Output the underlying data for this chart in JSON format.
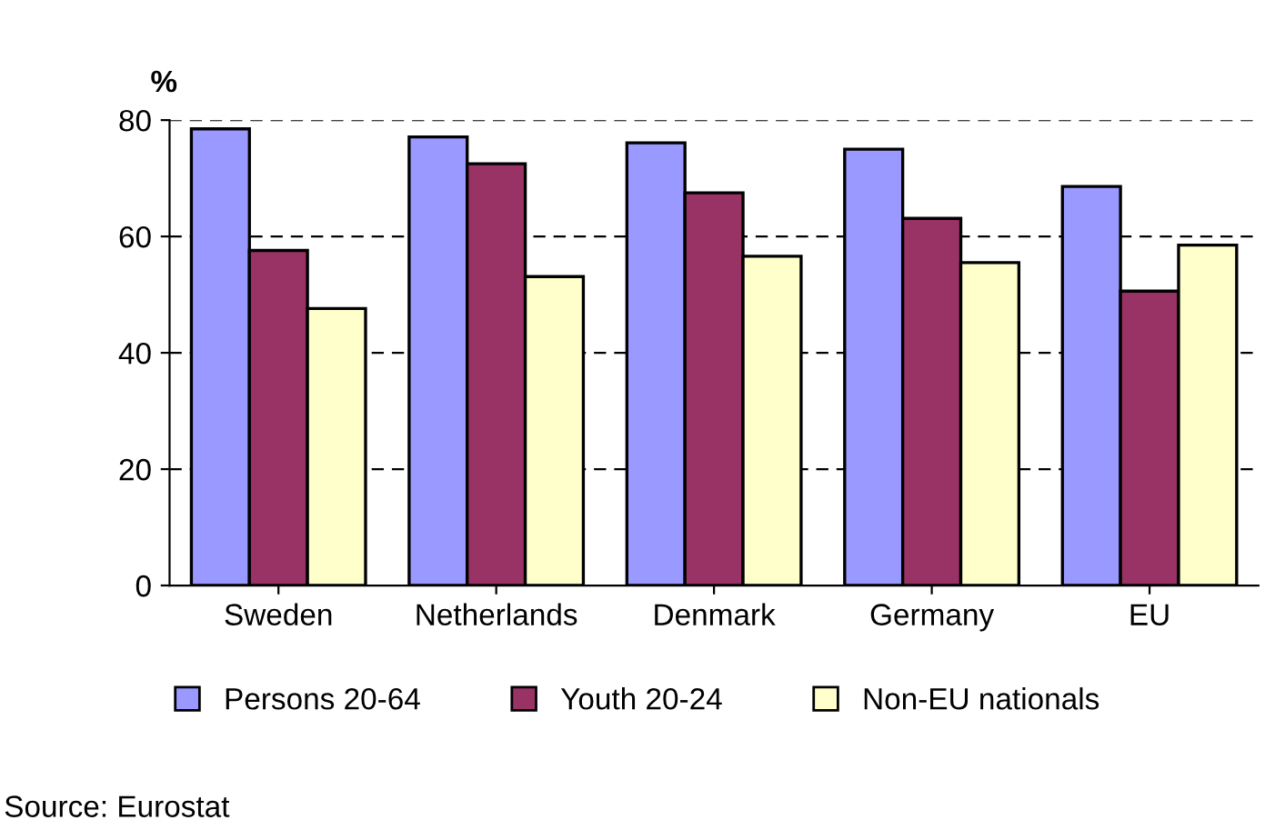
{
  "chart_data": {
    "type": "bar",
    "ylabel": "%",
    "categories": [
      "Sweden",
      "Netherlands",
      "Denmark",
      "Germany",
      "EU"
    ],
    "series": [
      {
        "name": "Persons 20-64",
        "color": "#9999ff",
        "values": [
          78.5,
          77.1,
          76.1,
          75.0,
          68.6
        ]
      },
      {
        "name": "Youth 20-24",
        "color": "#993366",
        "values": [
          57.6,
          72.5,
          67.5,
          63.1,
          50.6
        ]
      },
      {
        "name": "Non-EU nationals",
        "color": "#ffffcc",
        "values": [
          47.6,
          53.1,
          56.6,
          55.5,
          58.5
        ]
      }
    ],
    "ylim": [
      0,
      80
    ],
    "yticks": [
      0,
      20,
      40,
      60,
      80
    ],
    "grid": "y",
    "legend": "bottom",
    "annotations": [
      "Source: Eurostat"
    ]
  }
}
